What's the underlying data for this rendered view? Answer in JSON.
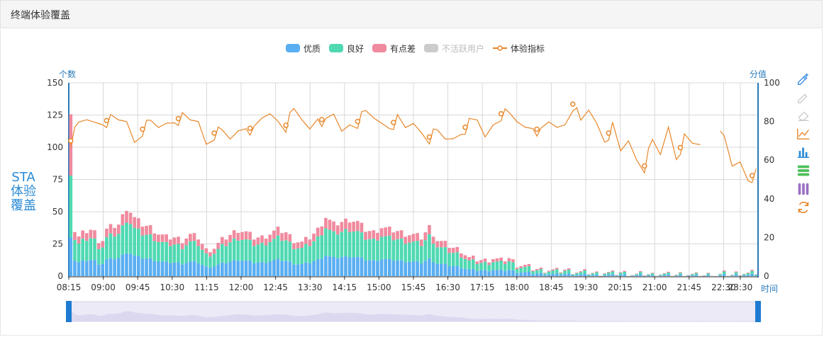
{
  "panel": {
    "title": "终端体验覆盖"
  },
  "side_label": "STA体验覆盖",
  "toolbox": [
    "edit-icon",
    "edit-disabled-icon",
    "erase-icon",
    "line-chart-icon",
    "bar-chart-icon",
    "stack-icon",
    "tiled-icon",
    "restore-icon"
  ],
  "colors": {
    "excellent": "#5aaef2",
    "good": "#4fd9b2",
    "poor": "#f08a9e",
    "inactive": "#cccccc",
    "index": "#e8872a",
    "axis": "#2a7ab8"
  },
  "chart_data": {
    "type": "bar",
    "legend": [
      "优质",
      "良好",
      "有点差",
      "不活跃用户",
      "体验指标"
    ],
    "legend_placement": "top-center",
    "ylabel_left": "个数",
    "ylabel_right": "分值",
    "xlabel": "时间",
    "ylim_left": [
      0,
      150
    ],
    "yticks_left": [
      0,
      25,
      50,
      75,
      100,
      125,
      150
    ],
    "ylim_right": [
      0,
      100
    ],
    "yticks_right": [
      0,
      20,
      40,
      60,
      80,
      100
    ],
    "x_ticks": [
      "08:15",
      "09:00",
      "09:45",
      "10:30",
      "11:15",
      "12:00",
      "12:45",
      "13:30",
      "14:15",
      "15:00",
      "15:45",
      "16:30",
      "17:15",
      "18:00",
      "18:45",
      "19:30",
      "20:15",
      "21:00",
      "21:45",
      "22:30",
      "23:30"
    ],
    "grid": true,
    "bar_totals_keypoints": [
      [
        0,
        128
      ],
      [
        1,
        35
      ],
      [
        2,
        30
      ],
      [
        3,
        33
      ],
      [
        4,
        35
      ],
      [
        5,
        36
      ],
      [
        6,
        34
      ],
      [
        7,
        28
      ],
      [
        8,
        28
      ],
      [
        9,
        36
      ],
      [
        10,
        38
      ],
      [
        12,
        40
      ],
      [
        14,
        53
      ],
      [
        15,
        50
      ],
      [
        16,
        45
      ],
      [
        18,
        40
      ],
      [
        20,
        38
      ],
      [
        22,
        33
      ],
      [
        24,
        30
      ],
      [
        26,
        30
      ],
      [
        28,
        28
      ],
      [
        30,
        32
      ],
      [
        32,
        30
      ],
      [
        34,
        20
      ],
      [
        36,
        22
      ],
      [
        38,
        28
      ],
      [
        40,
        32
      ],
      [
        42,
        36
      ],
      [
        44,
        34
      ],
      [
        46,
        30
      ],
      [
        48,
        30
      ],
      [
        50,
        33
      ],
      [
        52,
        36
      ],
      [
        54,
        34
      ],
      [
        56,
        28
      ],
      [
        58,
        26
      ],
      [
        60,
        30
      ],
      [
        62,
        36
      ],
      [
        64,
        46
      ],
      [
        66,
        40
      ],
      [
        68,
        42
      ],
      [
        70,
        44
      ],
      [
        72,
        42
      ],
      [
        74,
        36
      ],
      [
        76,
        34
      ],
      [
        78,
        38
      ],
      [
        80,
        36
      ],
      [
        82,
        35
      ],
      [
        84,
        33
      ],
      [
        86,
        32
      ],
      [
        88,
        30
      ],
      [
        90,
        38
      ],
      [
        92,
        28
      ],
      [
        94,
        25
      ],
      [
        96,
        22
      ],
      [
        98,
        20
      ],
      [
        100,
        14
      ],
      [
        102,
        13
      ],
      [
        104,
        12
      ],
      [
        106,
        14
      ],
      [
        108,
        12
      ],
      [
        110,
        14
      ],
      [
        112,
        9
      ],
      [
        114,
        8
      ],
      [
        116,
        6
      ],
      [
        118,
        5
      ],
      [
        120,
        5
      ],
      [
        122,
        4
      ],
      [
        124,
        5
      ],
      [
        126,
        4
      ],
      [
        128,
        3
      ],
      [
        130,
        3
      ],
      [
        132,
        2
      ],
      [
        134,
        3
      ],
      [
        136,
        2
      ],
      [
        138,
        3
      ],
      [
        140,
        2
      ],
      [
        142,
        1
      ],
      [
        144,
        2
      ],
      [
        146,
        1
      ],
      [
        148,
        2
      ],
      [
        150,
        1
      ],
      [
        152,
        1
      ],
      [
        154,
        2
      ],
      [
        156,
        1
      ],
      [
        158,
        0
      ],
      [
        160,
        1
      ],
      [
        162,
        0
      ],
      [
        164,
        2
      ],
      [
        166,
        1
      ],
      [
        168,
        3
      ],
      [
        170,
        2
      ],
      [
        172,
        3
      ]
    ],
    "index_series_keypoints": [
      [
        0,
        70
      ],
      [
        2,
        77
      ],
      [
        4,
        80
      ],
      [
        8,
        81
      ],
      [
        12,
        79
      ],
      [
        14,
        80
      ],
      [
        16,
        71
      ],
      [
        18,
        76
      ],
      [
        20,
        78
      ],
      [
        22,
        76
      ],
      [
        24,
        80
      ],
      [
        26,
        82
      ],
      [
        28,
        81
      ],
      [
        30,
        79
      ],
      [
        32,
        80
      ],
      [
        34,
        70
      ],
      [
        36,
        74
      ],
      [
        38,
        73
      ],
      [
        40,
        70
      ],
      [
        42,
        76
      ],
      [
        44,
        79
      ],
      [
        46,
        74
      ],
      [
        48,
        80
      ],
      [
        50,
        84
      ],
      [
        52,
        82
      ],
      [
        54,
        78
      ],
      [
        56,
        84
      ],
      [
        58,
        80
      ],
      [
        60,
        77
      ],
      [
        62,
        84
      ],
      [
        64,
        78
      ],
      [
        66,
        82
      ],
      [
        68,
        75
      ],
      [
        70,
        80
      ],
      [
        72,
        80
      ],
      [
        74,
        83
      ],
      [
        76,
        81
      ],
      [
        78,
        80
      ],
      [
        80,
        79
      ],
      [
        82,
        80
      ],
      [
        84,
        75
      ],
      [
        86,
        79
      ],
      [
        88,
        76
      ],
      [
        90,
        72
      ],
      [
        92,
        73
      ],
      [
        94,
        70
      ],
      [
        96,
        72
      ],
      [
        98,
        76
      ],
      [
        100,
        78
      ],
      [
        102,
        79
      ],
      [
        104,
        72
      ],
      [
        106,
        80
      ],
      [
        108,
        84
      ],
      [
        110,
        82
      ],
      [
        112,
        79
      ],
      [
        114,
        78
      ],
      [
        116,
        79
      ],
      [
        118,
        73
      ],
      [
        120,
        78
      ],
      [
        122,
        77
      ],
      [
        124,
        80
      ],
      [
        126,
        89
      ],
      [
        128,
        78
      ],
      [
        130,
        85
      ],
      [
        132,
        80
      ],
      [
        134,
        72
      ],
      [
        136,
        76
      ],
      [
        138,
        63
      ],
      [
        140,
        70
      ],
      [
        142,
        62
      ],
      [
        144,
        57
      ],
      [
        146,
        68
      ],
      [
        148,
        62
      ],
      [
        150,
        78
      ],
      [
        152,
        63
      ],
      [
        154,
        70
      ],
      [
        156,
        67
      ],
      [
        158,
        68
      ],
      [
        160,
        null
      ],
      [
        162,
        73
      ],
      [
        164,
        70
      ],
      [
        166,
        56
      ],
      [
        168,
        60
      ],
      [
        170,
        52
      ]
    ],
    "x_index_count": 173
  }
}
